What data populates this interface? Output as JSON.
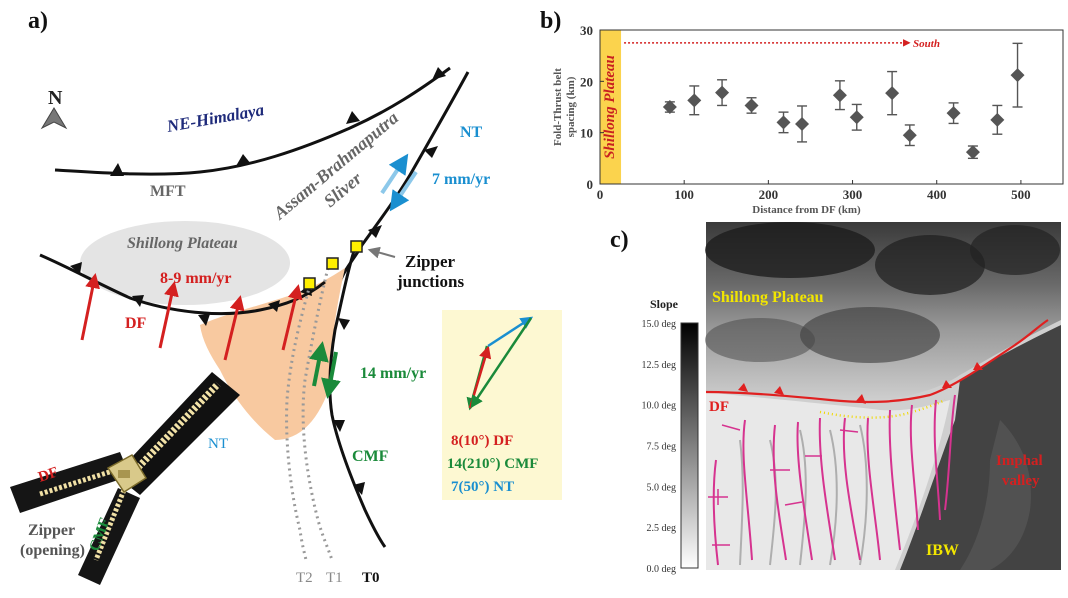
{
  "panels": {
    "a": {
      "label": "a)",
      "north": "N",
      "ne_himalaya": "NE-Himalaya",
      "sliver_line1": "Assam-Brahmaputra",
      "sliver_line2": "Sliver",
      "nt": "NT",
      "mft": "MFT",
      "nt_rate": "7 mm/yr",
      "shillong": "Shillong Plateau",
      "df_rate": "8-9 mm/yr",
      "df": "DF",
      "zipper_junctions_line1": "Zipper",
      "zipper_junctions_line2": "junctions",
      "cmf_rate": "14 mm/yr",
      "cmf": "CMF",
      "t2": "T2",
      "t1": "T1",
      "t0": "T0",
      "zipper_df": "DF",
      "zipper_nt": "NT",
      "zipper_cmf": "CMF",
      "zipper_opening_line1": "Zipper",
      "zipper_opening_line2": "(opening)",
      "vector_box": {
        "df": "8(10°) DF",
        "cmf": "14(210°) CMF",
        "nt": "7(50°) NT"
      },
      "colors": {
        "df": "#d42020",
        "cmf": "#1a8a3a",
        "nt": "#1a8fd0",
        "shillong_fill": "#e4e4e4",
        "wedge_fill": "#f8c9a0",
        "box_fill": "#fdf8d2",
        "junction": "#ffef00"
      }
    },
    "b": {
      "label": "b)",
      "south": "South",
      "band_label": "Shillong Plateau"
    },
    "c": {
      "label": "c)",
      "slope_title": "Slope",
      "slope_ticks": [
        "15.0 deg",
        "12.5 deg",
        "10.0 deg",
        "7.5 deg",
        "5.0 deg",
        "2.5 deg",
        "0.0 deg"
      ],
      "shillong": "Shillong Plateau",
      "df": "DF",
      "imphal_line1": "Imphal",
      "imphal_line2": "valley",
      "ibw": "IBW"
    }
  },
  "chart_data": {
    "type": "scatter",
    "xlabel": "Distance from DF (km)",
    "ylabel": "Fold-Thrust belt spacing (km)",
    "xlim": [
      0,
      550
    ],
    "ylim": [
      0,
      30
    ],
    "xticks": [
      0,
      100,
      200,
      300,
      400,
      500
    ],
    "yticks": [
      0,
      10,
      20,
      30
    ],
    "grid": false,
    "points": [
      {
        "x": 83,
        "y": 15,
        "err": 1
      },
      {
        "x": 112,
        "y": 16.3,
        "err": 2.8
      },
      {
        "x": 145,
        "y": 17.8,
        "err": 2.5
      },
      {
        "x": 180,
        "y": 15.3,
        "err": 1.5
      },
      {
        "x": 218,
        "y": 12,
        "err": 2
      },
      {
        "x": 240,
        "y": 11.7,
        "err": 3.5
      },
      {
        "x": 285,
        "y": 17.3,
        "err": 2.8
      },
      {
        "x": 305,
        "y": 13,
        "err": 2.5
      },
      {
        "x": 347,
        "y": 17.7,
        "err": 4.2
      },
      {
        "x": 368,
        "y": 9.5,
        "err": 2
      },
      {
        "x": 420,
        "y": 13.8,
        "err": 2
      },
      {
        "x": 443,
        "y": 6.2,
        "err": 1.2
      },
      {
        "x": 472,
        "y": 12.5,
        "err": 2.8
      },
      {
        "x": 496,
        "y": 21.2,
        "err": 6.2
      }
    ],
    "band": {
      "x_from": 0,
      "x_to": 25
    },
    "south_arrow_y": 27.5
  }
}
